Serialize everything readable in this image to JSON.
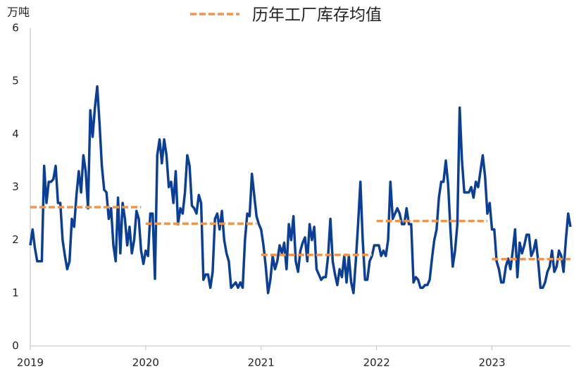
{
  "chart_data": {
    "type": "line",
    "ylabel": "万吨",
    "legend": "top",
    "grid": false,
    "xlim": [
      2019,
      2023.68
    ],
    "xticks": [
      2019,
      2020,
      2021,
      2022,
      2023
    ],
    "ylim": [
      0,
      6
    ],
    "yticks": [
      0,
      1,
      2,
      3,
      4,
      5,
      6
    ],
    "series": [
      {
        "color": "#0b3f96",
        "x": [
          2019,
          2019.02,
          2019.04,
          2019.06,
          2019.08,
          2019.1,
          2019.12,
          2019.14,
          2019.16,
          2019.18,
          2019.2,
          2019.22,
          2019.24,
          2019.26,
          2019.28,
          2019.3,
          2019.32,
          2019.34,
          2019.36,
          2019.38,
          2019.4,
          2019.42,
          2019.44,
          2019.46,
          2019.48,
          2019.5,
          2019.52,
          2019.54,
          2019.56,
          2019.58,
          2019.6,
          2019.62,
          2019.64,
          2019.66,
          2019.68,
          2019.7,
          2019.72,
          2019.74,
          2019.76,
          2019.78,
          2019.8,
          2019.82,
          2019.84,
          2019.86,
          2019.88,
          2019.9,
          2019.92,
          2019.94,
          2019.96,
          2019.98,
          2020,
          2020.02,
          2020.04,
          2020.06,
          2020.08,
          2020.1,
          2020.12,
          2020.14,
          2020.16,
          2020.18,
          2020.2,
          2020.22,
          2020.24,
          2020.26,
          2020.28,
          2020.3,
          2020.32,
          2020.34,
          2020.36,
          2020.38,
          2020.4,
          2020.42,
          2020.44,
          2020.46,
          2020.48,
          2020.5,
          2020.52,
          2020.54,
          2020.56,
          2020.58,
          2020.6,
          2020.62,
          2020.64,
          2020.66,
          2020.68,
          2020.7,
          2020.72,
          2020.74,
          2020.76,
          2020.78,
          2020.8,
          2020.82,
          2020.84,
          2020.86,
          2020.88,
          2020.9,
          2020.92,
          2020.94,
          2020.96,
          2020.98,
          2021,
          2021.02,
          2021.04,
          2021.06,
          2021.08,
          2021.1,
          2021.12,
          2021.14,
          2021.16,
          2021.18,
          2021.2,
          2021.22,
          2021.24,
          2021.26,
          2021.28,
          2021.3,
          2021.32,
          2021.34,
          2021.36,
          2021.38,
          2021.4,
          2021.42,
          2021.44,
          2021.46,
          2021.48,
          2021.5,
          2021.52,
          2021.54,
          2021.56,
          2021.58,
          2021.6,
          2021.62,
          2021.64,
          2021.66,
          2021.68,
          2021.7,
          2021.72,
          2021.74,
          2021.76,
          2021.78,
          2021.8,
          2021.82,
          2021.84,
          2021.86,
          2021.88,
          2021.9,
          2021.92,
          2021.94,
          2021.96,
          2021.98,
          2022,
          2022.02,
          2022.04,
          2022.06,
          2022.08,
          2022.1,
          2022.12,
          2022.14,
          2022.16,
          2022.18,
          2022.2,
          2022.22,
          2022.24,
          2022.26,
          2022.28,
          2022.3,
          2022.32,
          2022.34,
          2022.36,
          2022.38,
          2022.4,
          2022.42,
          2022.44,
          2022.46,
          2022.48,
          2022.5,
          2022.52,
          2022.54,
          2022.56,
          2022.58,
          2022.6,
          2022.62,
          2022.64,
          2022.66,
          2022.68,
          2022.7,
          2022.72,
          2022.74,
          2022.76,
          2022.78,
          2022.8,
          2022.82,
          2022.84,
          2022.86,
          2022.88,
          2022.9,
          2022.92,
          2022.94,
          2022.96,
          2022.98,
          2023,
          2023.02,
          2023.04,
          2023.06,
          2023.08,
          2023.1,
          2023.12,
          2023.14,
          2023.16,
          2023.18,
          2023.2,
          2023.22,
          2023.24,
          2023.26,
          2023.28,
          2023.3,
          2023.32,
          2023.34,
          2023.36,
          2023.38,
          2023.4,
          2023.42,
          2023.44,
          2023.46,
          2023.48,
          2023.5,
          2023.52,
          2023.54,
          2023.56,
          2023.58,
          2023.6,
          2023.62,
          2023.64,
          2023.66,
          2023.68
        ],
        "values": [
          1.9,
          2.2,
          1.85,
          1.6,
          1.6,
          1.6,
          3.4,
          2.7,
          3.1,
          3.1,
          3.15,
          3.4,
          2.7,
          2.7,
          2.0,
          1.7,
          1.45,
          1.6,
          2.4,
          2.25,
          2.85,
          3.3,
          2.9,
          3.6,
          3.3,
          2.6,
          4.45,
          3.95,
          4.5,
          4.9,
          4.2,
          3.4,
          2.95,
          2.9,
          2.4,
          2.6,
          1.9,
          1.6,
          2.8,
          1.75,
          2.7,
          2.4,
          1.9,
          2.25,
          1.75,
          2.0,
          2.55,
          2.4,
          1.8,
          1.55,
          1.8,
          1.7,
          2.5,
          2.5,
          1.27,
          3.6,
          3.9,
          3.45,
          3.9,
          3.6,
          3.0,
          3.1,
          2.7,
          3.3,
          2.3,
          2.6,
          2.5,
          2.9,
          3.6,
          3.4,
          2.65,
          2.6,
          2.5,
          2.85,
          2.7,
          1.25,
          1.35,
          1.35,
          1.1,
          1.4,
          2.4,
          2.5,
          2.2,
          2.55,
          2.0,
          1.75,
          1.6,
          1.1,
          1.15,
          1.2,
          1.1,
          1.2,
          1.1,
          2.0,
          2.5,
          2.45,
          3.25,
          2.85,
          2.45,
          2.3,
          2.2,
          1.9,
          1.5,
          1.0,
          1.25,
          1.7,
          1.45,
          1.6,
          1.9,
          1.75,
          1.95,
          1.45,
          2.3,
          2.0,
          2.45,
          1.6,
          1.4,
          1.8,
          1.95,
          2.05,
          1.6,
          2.3,
          2.0,
          2.25,
          1.45,
          1.35,
          1.25,
          1.3,
          1.3,
          1.7,
          2.4,
          1.6,
          1.35,
          1.15,
          1.45,
          1.3,
          1.7,
          1.2,
          1.7,
          1.2,
          1.0,
          1.6,
          2.3,
          3.1,
          2.0,
          1.25,
          1.25,
          1.6,
          1.7,
          1.9,
          1.9,
          1.9,
          1.7,
          1.8,
          1.7,
          2.0,
          3.1,
          2.4,
          2.5,
          2.6,
          2.5,
          2.3,
          2.3,
          2.6,
          2.3,
          2.3,
          1.2,
          1.3,
          1.25,
          1.1,
          1.1,
          1.15,
          1.15,
          1.25,
          1.65,
          2.0,
          2.2,
          2.8,
          3.1,
          3.1,
          3.5,
          3.05,
          2.2,
          1.5,
          1.8,
          2.3,
          4.5,
          3.5,
          2.9,
          2.9,
          2.9,
          3.0,
          2.8,
          3.1,
          3.0,
          3.3,
          3.6,
          3.2,
          2.5,
          2.7,
          2.2,
          2.2,
          1.6,
          1.45,
          1.2,
          1.2,
          1.5,
          1.65,
          1.45,
          1.8,
          2.2,
          1.3,
          1.95,
          1.75,
          1.9,
          2.1,
          2.1,
          1.7,
          1.8,
          2.0,
          1.6,
          1.1,
          1.1,
          1.2,
          1.4,
          1.5,
          1.8,
          1.4,
          1.5,
          1.8,
          1.7,
          1.4,
          2.0,
          2.5,
          2.25
        ]
      },
      {
        "name": "历年工厂库存均值",
        "color": "#f0944a",
        "dashed": true,
        "x": [
          2019,
          2019.96,
          2019.98,
          2020,
          2020.96,
          2020.98,
          2021,
          2021.96,
          2021.98,
          2022,
          2022.96,
          2022.98,
          2023,
          2023.68
        ],
        "values": [
          2.62,
          2.62,
          null,
          2.31,
          2.31,
          null,
          1.72,
          1.72,
          null,
          2.36,
          2.36,
          null,
          1.64,
          1.64
        ]
      }
    ]
  }
}
